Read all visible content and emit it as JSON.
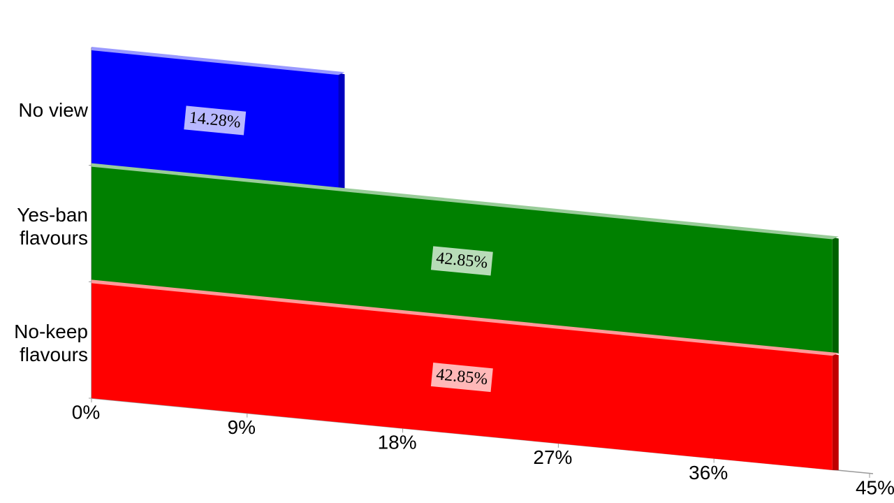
{
  "chart_data": {
    "type": "bar",
    "orientation": "horizontal",
    "categories": [
      "No view",
      "Yes-ban flavours",
      "No-keep flavours"
    ],
    "values": [
      14.28,
      42.85,
      42.85
    ],
    "value_labels": [
      "14.28%",
      "42.85%",
      "42.85%"
    ],
    "colors": [
      "#0000ff",
      "#008000",
      "#ff0000"
    ],
    "xlim": [
      0,
      45
    ],
    "xticks": [
      {
        "value": 0,
        "label": "0%"
      },
      {
        "value": 9,
        "label": "9%"
      },
      {
        "value": 18,
        "label": "18%"
      },
      {
        "value": 27,
        "label": "27%"
      },
      {
        "value": 36,
        "label": "36%"
      },
      {
        "value": 45,
        "label": "45%"
      }
    ],
    "grid": false
  }
}
